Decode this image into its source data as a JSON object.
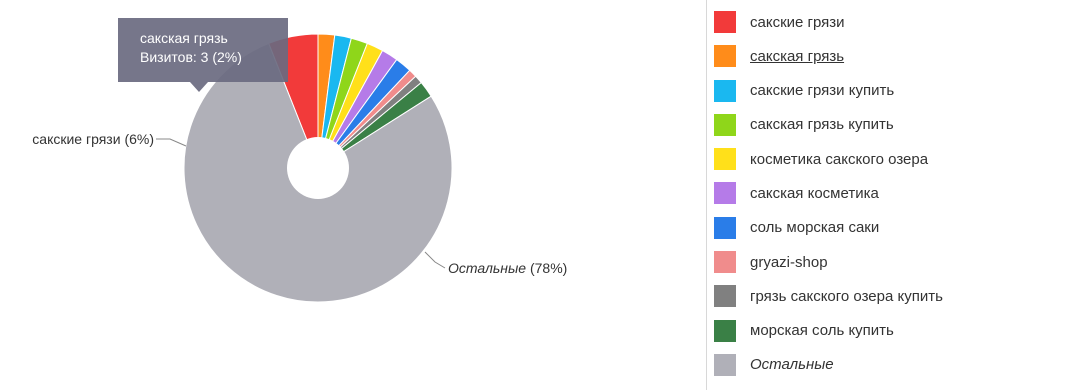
{
  "chart_data": {
    "type": "pie",
    "donut": true,
    "slices": [
      {
        "name": "сакские грязи",
        "percent": 6,
        "color": "#f23a3a"
      },
      {
        "name": "сакская грязь",
        "percent": 2,
        "color": "#ff8c1a"
      },
      {
        "name": "сакские грязи купить",
        "percent": 2,
        "color": "#1ab8f0"
      },
      {
        "name": "сакская грязь купить",
        "percent": 2,
        "color": "#8fd61a"
      },
      {
        "name": "косметика сакского озера",
        "percent": 2,
        "color": "#ffe01a"
      },
      {
        "name": "сакская косметика",
        "percent": 2,
        "color": "#b57be8"
      },
      {
        "name": "соль морская саки",
        "percent": 2,
        "color": "#2a7de8"
      },
      {
        "name": "gryazi-shop",
        "percent": 1,
        "color": "#f08c8c"
      },
      {
        "name": "грязь сакского озера купить",
        "percent": 1,
        "color": "#808080"
      },
      {
        "name": "морская соль купить",
        "percent": 2,
        "color": "#3a8046"
      },
      {
        "name": "Остальные",
        "percent": 78,
        "color": "#b0b0b8"
      }
    ],
    "labels": {
      "first": {
        "name": "сакские грязи",
        "value": "(6%)"
      },
      "last": {
        "name": "Остальные",
        "value": "(78%)"
      }
    },
    "tooltip": {
      "title": "сакская грязь",
      "visits_text": "Визитов: 3 (2%)"
    },
    "legend": {
      "placement": "right",
      "items": [
        {
          "label": "сакские грязи",
          "color": "#f23a3a",
          "style": "normal"
        },
        {
          "label": "сакская грязь",
          "color": "#ff8c1a",
          "style": "underline"
        },
        {
          "label": "сакские грязи купить",
          "color": "#1ab8f0",
          "style": "normal"
        },
        {
          "label": "сакская грязь купить",
          "color": "#8fd61a",
          "style": "normal"
        },
        {
          "label": "косметика сакского озера",
          "color": "#ffe01a",
          "style": "normal"
        },
        {
          "label": "сакская косметика",
          "color": "#b57be8",
          "style": "normal"
        },
        {
          "label": "соль морская саки",
          "color": "#2a7de8",
          "style": "normal"
        },
        {
          "label": "gryazi-shop",
          "color": "#f08c8c",
          "style": "normal"
        },
        {
          "label": "грязь сакского озера купить",
          "color": "#808080",
          "style": "normal"
        },
        {
          "label": "морская соль купить",
          "color": "#3a8046",
          "style": "normal"
        },
        {
          "label": "Остальные",
          "color": "#b0b0b8",
          "style": "italic"
        }
      ]
    }
  }
}
